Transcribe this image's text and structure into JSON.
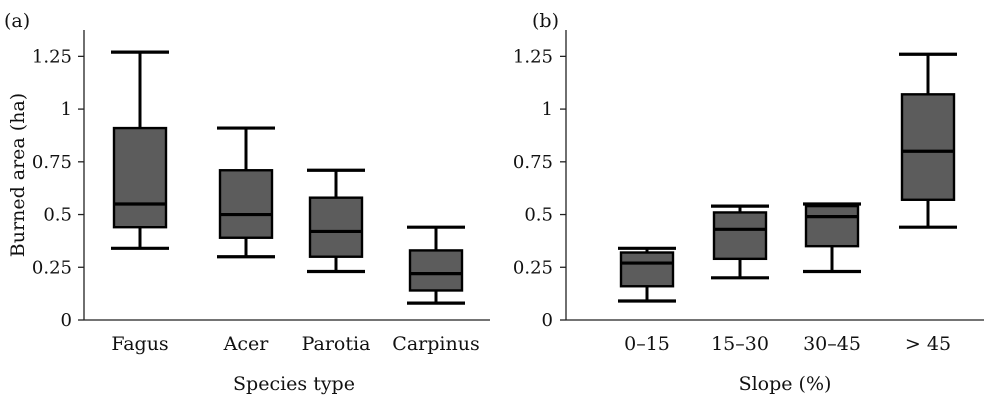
{
  "chart_data": [
    {
      "type": "box",
      "panel_label": "(a)",
      "xlabel": "Species type",
      "ylabel": "Burned area (ha)",
      "ylim": [
        0,
        1.375
      ],
      "yticks": [
        0,
        0.25,
        0.5,
        0.75,
        1,
        1.25
      ],
      "ytick_labels": [
        "0",
        "0.25",
        "0.5",
        "0.75",
        "1",
        "1.25"
      ],
      "categories": [
        "Fagus",
        "Acer",
        "Parotia",
        "Carpinus"
      ],
      "boxes": [
        {
          "min": 0.34,
          "q1": 0.44,
          "median": 0.55,
          "q3": 0.91,
          "max": 1.27
        },
        {
          "min": 0.3,
          "q1": 0.39,
          "median": 0.5,
          "q3": 0.71,
          "max": 0.91
        },
        {
          "min": 0.23,
          "q1": 0.3,
          "median": 0.42,
          "q3": 0.58,
          "max": 0.71
        },
        {
          "min": 0.08,
          "q1": 0.14,
          "median": 0.22,
          "q3": 0.33,
          "max": 0.44
        }
      ],
      "box_fill": "#5c5c5c",
      "line_color": "#000000"
    },
    {
      "type": "box",
      "panel_label": "(b)",
      "xlabel": "Slope (%)",
      "ylabel": "",
      "ylim": [
        0,
        1.375
      ],
      "yticks": [
        0,
        0.25,
        0.5,
        0.75,
        1,
        1.25
      ],
      "ytick_labels": [
        "0",
        "0.25",
        "0.5",
        "0.75",
        "1",
        "1.25"
      ],
      "categories": [
        "0–15",
        "15–30",
        "30–45",
        "> 45"
      ],
      "boxes": [
        {
          "min": 0.09,
          "q1": 0.16,
          "median": 0.27,
          "q3": 0.32,
          "max": 0.34
        },
        {
          "min": 0.2,
          "q1": 0.29,
          "median": 0.43,
          "q3": 0.51,
          "max": 0.54
        },
        {
          "min": 0.23,
          "q1": 0.35,
          "median": 0.49,
          "q3": 0.54,
          "max": 0.55
        },
        {
          "min": 0.44,
          "q1": 0.57,
          "median": 0.8,
          "q3": 1.07,
          "max": 1.26
        }
      ],
      "box_fill": "#5c5c5c",
      "line_color": "#000000"
    }
  ]
}
